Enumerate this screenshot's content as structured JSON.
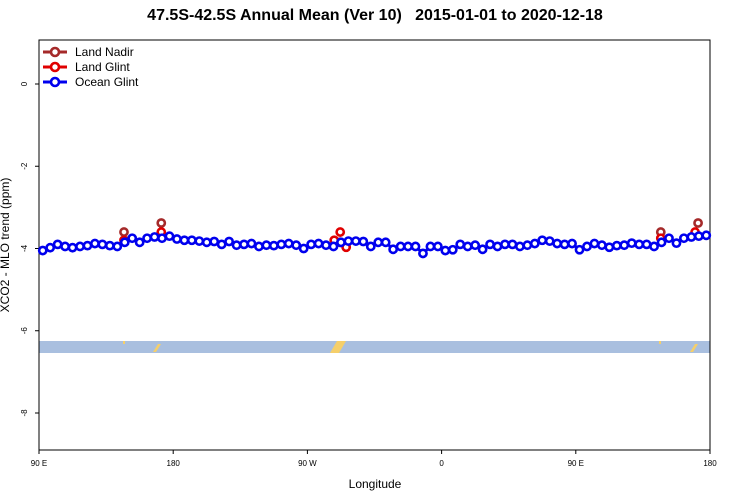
{
  "chart_data": {
    "type": "line",
    "title": "47.5S-42.5S Annual Mean (Ver 10)   2015-01-01 to 2020-12-18",
    "x_label": "Longitude",
    "y_label": "XCO2 - MLO trend (ppm)",
    "xlim": [
      90,
      540
    ],
    "ylim": [
      -8.9,
      1.07
    ],
    "xticks": [
      {
        "value": 90,
        "label": "90 E"
      },
      180,
      {
        "value": 270,
        "label": "90 W"
      },
      {
        "value": 360,
        "label": "0"
      },
      {
        "value": 450,
        "label": "90 E"
      },
      {
        "value": 540,
        "label": "180"
      }
    ],
    "yticks": [
      0,
      -2,
      -4,
      -6,
      -8
    ],
    "legend": "top-left",
    "series": [
      {
        "name": "Land Nadir",
        "color": "#a52a2a",
        "x": [
          147,
          172,
          292,
          507,
          532
        ],
        "values": [
          -3.6,
          -3.38,
          -3.85,
          -3.6,
          -3.38
        ]
      },
      {
        "name": "Land Glint",
        "color": "#e00000",
        "x": [
          147,
          172,
          288,
          292,
          296,
          507,
          530
        ],
        "values": [
          -3.8,
          -3.6,
          -3.8,
          -3.6,
          -3.97,
          -3.75,
          -3.6
        ]
      },
      {
        "name": "Ocean Glint",
        "color": "#0000ee",
        "x": [
          92.5,
          97.5,
          102.5,
          107.5,
          112.5,
          117.5,
          122.5,
          127.5,
          132.5,
          137.5,
          142.5,
          147.5,
          152.5,
          157.5,
          162.5,
          167.5,
          172.5,
          177.5,
          182.5,
          187.5,
          192.5,
          197.5,
          202.5,
          207.5,
          212.5,
          217.5,
          222.5,
          227.5,
          232.5,
          237.5,
          242.5,
          247.5,
          252.5,
          257.5,
          262.5,
          267.5,
          272.5,
          277.5,
          282.5,
          287.5,
          292.5,
          297.5,
          302.5,
          307.5,
          312.5,
          317.5,
          322.5,
          327.5,
          332.5,
          337.5,
          342.5,
          347.5,
          352.5,
          357.5,
          362.5,
          367.5,
          372.5,
          377.5,
          382.5,
          387.5,
          392.5,
          397.5,
          402.5,
          407.5,
          412.5,
          417.5,
          422.5,
          427.5,
          432.5,
          437.5,
          442.5,
          447.5,
          452.5,
          457.5,
          462.5,
          467.5,
          472.5,
          477.5,
          482.5,
          487.5,
          492.5,
          497.5,
          502.5,
          507.5,
          512.5,
          517.5,
          522.5,
          527.5,
          532.5,
          537.5
        ],
        "values": [
          -4.05,
          -3.98,
          -3.9,
          -3.95,
          -3.98,
          -3.95,
          -3.93,
          -3.88,
          -3.9,
          -3.93,
          -3.95,
          -3.85,
          -3.75,
          -3.85,
          -3.75,
          -3.72,
          -3.75,
          -3.7,
          -3.77,
          -3.8,
          -3.8,
          -3.82,
          -3.85,
          -3.83,
          -3.9,
          -3.83,
          -3.92,
          -3.9,
          -3.88,
          -3.95,
          -3.92,
          -3.93,
          -3.9,
          -3.88,
          -3.92,
          -4.0,
          -3.9,
          -3.88,
          -3.92,
          -3.95,
          -3.85,
          -3.82,
          -3.82,
          -3.83,
          -3.95,
          -3.85,
          -3.85,
          -4.02,
          -3.95,
          -3.95,
          -3.95,
          -4.12,
          -3.95,
          -3.95,
          -4.05,
          -4.03,
          -3.9,
          -3.95,
          -3.92,
          -4.02,
          -3.9,
          -3.95,
          -3.9,
          -3.9,
          -3.95,
          -3.92,
          -3.88,
          -3.8,
          -3.82,
          -3.88,
          -3.9,
          -3.88,
          -4.03,
          -3.95,
          -3.88,
          -3.92,
          -3.97,
          -3.93,
          -3.92,
          -3.87,
          -3.9,
          -3.9,
          -3.95,
          -3.85,
          -3.75,
          -3.87,
          -3.75,
          -3.72,
          -3.7,
          -3.68
        ]
      }
    ]
  }
}
